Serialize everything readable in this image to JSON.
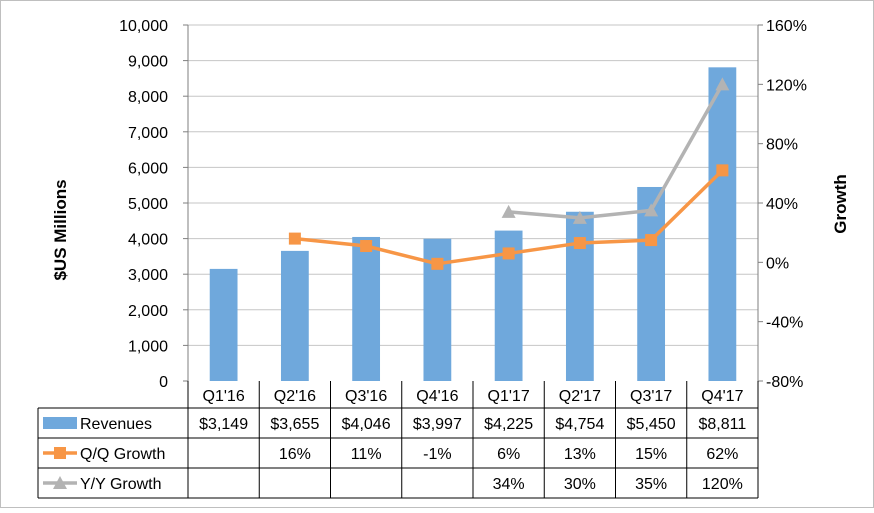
{
  "chart_data": {
    "type": "bar",
    "categories": [
      "Q1'16",
      "Q2'16",
      "Q3'16",
      "Q4'16",
      "Q1'17",
      "Q2'17",
      "Q3'17",
      "Q4'17"
    ],
    "ylabel": "$US Millions",
    "y2label": "Growth",
    "ylim": [
      0,
      10000
    ],
    "y2lim": [
      -80,
      160
    ],
    "y_ticks": [
      0,
      1000,
      2000,
      3000,
      4000,
      5000,
      6000,
      7000,
      8000,
      9000,
      10000
    ],
    "y_tick_labels": [
      "0",
      "1,000",
      "2,000",
      "3,000",
      "4,000",
      "5,000",
      "6,000",
      "7,000",
      "8,000",
      "9,000",
      "10,000"
    ],
    "y2_ticks": [
      -80,
      -40,
      0,
      40,
      80,
      120,
      160
    ],
    "y2_tick_labels": [
      "-80%",
      "-40%",
      "0%",
      "40%",
      "80%",
      "120%",
      "160%"
    ],
    "series": [
      {
        "name": "Revenues",
        "kind": "bar",
        "axis": "left",
        "color": "#6fa8dc",
        "values": [
          3149,
          3655,
          4046,
          3997,
          4225,
          4754,
          5450,
          8811
        ],
        "labels": [
          "$3,149",
          "$3,655",
          "$4,046",
          "$3,997",
          "$4,225",
          "$4,754",
          "$5,450",
          "$8,811"
        ]
      },
      {
        "name": "Q/Q Growth",
        "kind": "line",
        "marker": "square",
        "axis": "right",
        "color": "#f79646",
        "values": [
          null,
          16,
          11,
          -1,
          6,
          13,
          15,
          62
        ],
        "labels": [
          "",
          "16%",
          "11%",
          "-1%",
          "6%",
          "13%",
          "15%",
          "62%"
        ]
      },
      {
        "name": "Y/Y Growth",
        "kind": "line",
        "marker": "triangle",
        "axis": "right",
        "color": "#b3b3b3",
        "values": [
          null,
          null,
          null,
          null,
          34,
          30,
          35,
          120
        ],
        "labels": [
          "",
          "",
          "",
          "",
          "34%",
          "30%",
          "35%",
          "120%"
        ]
      }
    ]
  }
}
